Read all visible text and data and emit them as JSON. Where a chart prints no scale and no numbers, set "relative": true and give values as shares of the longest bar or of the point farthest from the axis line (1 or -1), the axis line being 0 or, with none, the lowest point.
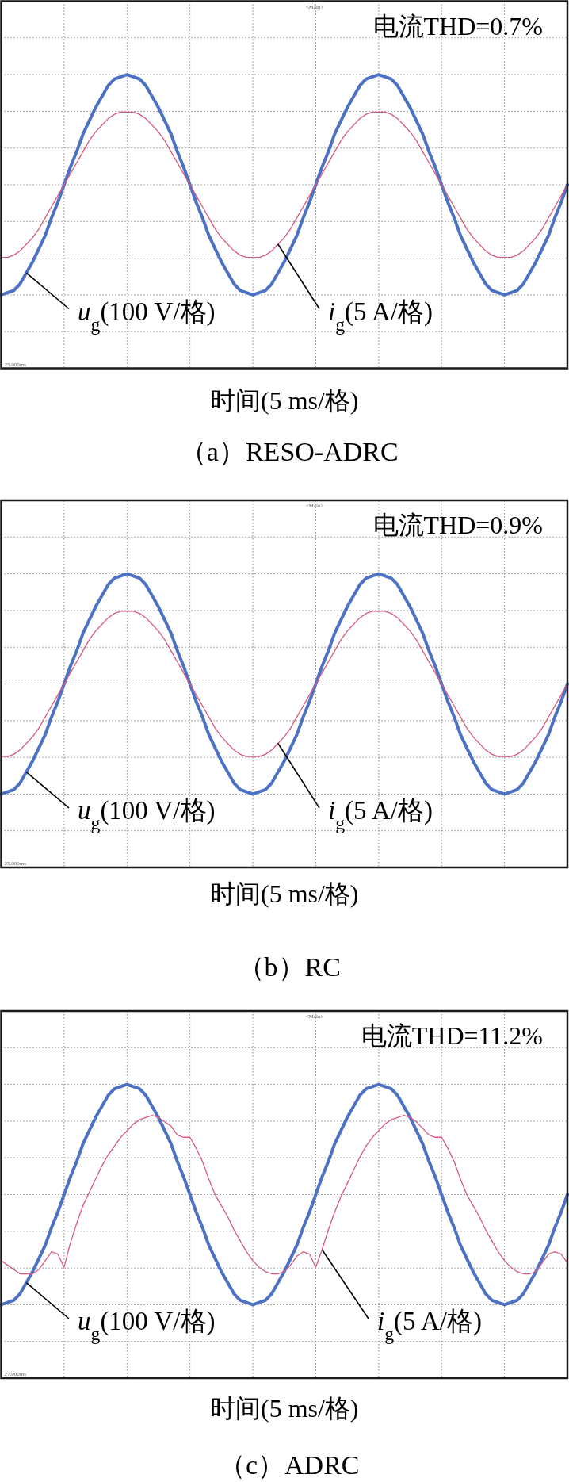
{
  "chart_data": [
    {
      "type": "line",
      "relative": true,
      "grid": true,
      "title": "（a）RESO-ADRC",
      "xlabel": "时间(5 ms/格)",
      "annotations": [
        "电流THD=0.7%",
        "<Main>",
        "25.000ms"
      ],
      "categories": [
        null,
        null,
        null,
        null,
        null,
        null,
        null,
        null,
        null,
        null,
        null,
        null,
        null,
        null,
        null,
        null,
        null,
        null,
        null,
        null,
        null,
        null,
        null,
        null,
        null,
        null,
        null,
        null,
        null,
        null,
        null,
        null,
        null,
        null,
        null,
        null,
        null,
        null,
        null,
        null,
        null,
        null,
        null,
        null,
        null,
        null,
        null,
        null,
        null,
        null,
        null,
        null,
        null,
        null,
        null,
        null,
        null,
        null,
        null,
        null,
        null,
        null,
        null,
        null,
        null,
        null,
        null,
        null,
        null,
        null,
        null,
        null,
        null,
        null,
        null,
        null,
        null,
        null,
        null,
        null,
        null,
        null,
        null,
        null,
        null,
        null,
        null,
        null,
        null,
        null,
        null
      ],
      "series": [
        {
          "name": "u$_{g}$(100 V/格)",
          "color": "#4d72c4",
          "values": [
            0,
            0.01,
            0.02,
            0.05,
            0.1,
            0.15,
            0.21,
            0.27,
            0.35,
            0.42,
            0.5,
            0.58,
            0.65,
            0.73,
            0.79,
            0.85,
            0.9,
            0.95,
            0.98,
            0.99,
            1,
            0.99,
            0.98,
            0.95,
            0.9,
            0.85,
            0.79,
            0.73,
            0.65,
            0.58,
            0.5,
            0.42,
            0.35,
            0.27,
            0.21,
            0.15,
            0.1,
            0.05,
            0.02,
            0.01,
            0,
            0.01,
            0.02,
            0.05,
            0.1,
            0.15,
            0.21,
            0.27,
            0.35,
            0.42,
            0.5,
            0.58,
            0.65,
            0.73,
            0.79,
            0.85,
            0.9,
            0.95,
            0.98,
            0.99,
            1,
            0.99,
            0.98,
            0.95,
            0.9,
            0.85,
            0.79,
            0.73,
            0.65,
            0.58,
            0.5,
            0.42,
            0.35,
            0.27,
            0.21,
            0.15,
            0.1,
            0.05,
            0.02,
            0.01,
            0,
            0.01,
            0.02,
            0.05,
            0.1,
            0.15,
            0.21,
            0.27,
            0.35,
            0.42,
            0.5
          ]
        },
        {
          "name": "i$_{g}$(5 A/格)",
          "color": "#d65a7c",
          "values": [
            0.17,
            0.17,
            0.18,
            0.2,
            0.23,
            0.26,
            0.3,
            0.35,
            0.4,
            0.45,
            0.5,
            0.55,
            0.6,
            0.65,
            0.7,
            0.74,
            0.77,
            0.8,
            0.82,
            0.83,
            0.83,
            0.83,
            0.82,
            0.8,
            0.77,
            0.74,
            0.7,
            0.65,
            0.6,
            0.55,
            0.5,
            0.45,
            0.4,
            0.35,
            0.3,
            0.26,
            0.23,
            0.2,
            0.18,
            0.17,
            0.17,
            0.17,
            0.18,
            0.2,
            0.23,
            0.26,
            0.3,
            0.35,
            0.4,
            0.45,
            0.5,
            0.55,
            0.6,
            0.65,
            0.7,
            0.74,
            0.77,
            0.8,
            0.82,
            0.83,
            0.83,
            0.83,
            0.82,
            0.8,
            0.77,
            0.74,
            0.7,
            0.65,
            0.6,
            0.55,
            0.5,
            0.45,
            0.4,
            0.35,
            0.3,
            0.26,
            0.23,
            0.2,
            0.18,
            0.17,
            0.17,
            0.17,
            0.18,
            0.2,
            0.23,
            0.26,
            0.3,
            0.35,
            0.4,
            0.45,
            0.5
          ]
        }
      ]
    },
    {
      "type": "line",
      "relative": true,
      "grid": true,
      "title": "（b）RC",
      "xlabel": "时间(5 ms/格)",
      "annotations": [
        "电流THD=0.9%",
        "<Main>",
        "25.000ms"
      ],
      "categories": [
        null,
        null,
        null,
        null,
        null,
        null,
        null,
        null,
        null,
        null,
        null,
        null,
        null,
        null,
        null,
        null,
        null,
        null,
        null,
        null,
        null,
        null,
        null,
        null,
        null,
        null,
        null,
        null,
        null,
        null,
        null,
        null,
        null,
        null,
        null,
        null,
        null,
        null,
        null,
        null,
        null,
        null,
        null,
        null,
        null,
        null,
        null,
        null,
        null,
        null,
        null,
        null,
        null,
        null,
        null,
        null,
        null,
        null,
        null,
        null,
        null,
        null,
        null,
        null,
        null,
        null,
        null,
        null,
        null,
        null,
        null,
        null,
        null,
        null,
        null,
        null,
        null,
        null,
        null,
        null,
        null,
        null,
        null,
        null,
        null,
        null,
        null,
        null,
        null,
        null,
        null
      ],
      "series": [
        {
          "name": "u$_{g}$(100 V/格)",
          "color": "#4d72c4",
          "values": [
            0,
            0.01,
            0.02,
            0.05,
            0.1,
            0.15,
            0.21,
            0.27,
            0.35,
            0.42,
            0.5,
            0.58,
            0.65,
            0.73,
            0.79,
            0.85,
            0.9,
            0.95,
            0.98,
            0.99,
            1,
            0.99,
            0.98,
            0.95,
            0.9,
            0.85,
            0.79,
            0.73,
            0.65,
            0.58,
            0.5,
            0.42,
            0.35,
            0.27,
            0.21,
            0.15,
            0.1,
            0.05,
            0.02,
            0.01,
            0,
            0.01,
            0.02,
            0.05,
            0.1,
            0.15,
            0.21,
            0.27,
            0.35,
            0.42,
            0.5,
            0.58,
            0.65,
            0.73,
            0.79,
            0.85,
            0.9,
            0.95,
            0.98,
            0.99,
            1,
            0.99,
            0.98,
            0.95,
            0.9,
            0.85,
            0.79,
            0.73,
            0.65,
            0.58,
            0.5,
            0.42,
            0.35,
            0.27,
            0.21,
            0.15,
            0.1,
            0.05,
            0.02,
            0.01,
            0,
            0.01,
            0.02,
            0.05,
            0.1,
            0.15,
            0.21,
            0.27,
            0.35,
            0.42,
            0.5
          ]
        },
        {
          "name": "i$_{g}$(5 A/格)",
          "color": "#d65a7c",
          "values": [
            0.17,
            0.17,
            0.18,
            0.2,
            0.23,
            0.26,
            0.3,
            0.35,
            0.4,
            0.45,
            0.5,
            0.55,
            0.6,
            0.65,
            0.7,
            0.74,
            0.77,
            0.8,
            0.82,
            0.83,
            0.83,
            0.83,
            0.82,
            0.8,
            0.77,
            0.74,
            0.7,
            0.65,
            0.6,
            0.55,
            0.5,
            0.45,
            0.4,
            0.35,
            0.3,
            0.26,
            0.23,
            0.2,
            0.18,
            0.17,
            0.17,
            0.17,
            0.18,
            0.2,
            0.23,
            0.26,
            0.3,
            0.35,
            0.4,
            0.45,
            0.5,
            0.55,
            0.6,
            0.65,
            0.7,
            0.74,
            0.77,
            0.8,
            0.82,
            0.83,
            0.83,
            0.83,
            0.82,
            0.8,
            0.77,
            0.74,
            0.7,
            0.65,
            0.6,
            0.55,
            0.5,
            0.45,
            0.4,
            0.35,
            0.3,
            0.26,
            0.23,
            0.2,
            0.18,
            0.17,
            0.17,
            0.17,
            0.18,
            0.2,
            0.23,
            0.26,
            0.3,
            0.35,
            0.4,
            0.45,
            0.5
          ]
        }
      ]
    },
    {
      "type": "line",
      "relative": true,
      "grid": true,
      "title": "（c）ADRC",
      "xlabel": "时间(5 ms/格)",
      "annotations": [
        "电流THD=11.2%",
        "<Main>",
        "27.000ms"
      ],
      "categories": [
        null,
        null,
        null,
        null,
        null,
        null,
        null,
        null,
        null,
        null,
        null,
        null,
        null,
        null,
        null,
        null,
        null,
        null,
        null,
        null,
        null,
        null,
        null,
        null,
        null,
        null,
        null,
        null,
        null,
        null,
        null,
        null,
        null,
        null,
        null,
        null,
        null,
        null,
        null,
        null,
        null,
        null,
        null,
        null,
        null,
        null,
        null,
        null,
        null,
        null,
        null,
        null,
        null,
        null,
        null,
        null,
        null,
        null,
        null,
        null,
        null,
        null,
        null,
        null,
        null,
        null,
        null,
        null,
        null,
        null,
        null,
        null,
        null,
        null,
        null,
        null,
        null,
        null,
        null,
        null,
        null,
        null,
        null,
        null,
        null,
        null,
        null,
        null,
        null,
        null,
        null
      ],
      "series": [
        {
          "name": "u$_{g}$(100 V/格)",
          "color": "#4d72c4",
          "values": [
            0,
            0.01,
            0.02,
            0.05,
            0.1,
            0.15,
            0.21,
            0.27,
            0.35,
            0.42,
            0.5,
            0.58,
            0.65,
            0.73,
            0.79,
            0.85,
            0.9,
            0.95,
            0.98,
            0.99,
            1,
            0.99,
            0.98,
            0.95,
            0.9,
            0.85,
            0.79,
            0.73,
            0.65,
            0.58,
            0.5,
            0.42,
            0.35,
            0.27,
            0.21,
            0.15,
            0.1,
            0.05,
            0.02,
            0.01,
            0,
            0.01,
            0.02,
            0.05,
            0.1,
            0.15,
            0.21,
            0.27,
            0.35,
            0.42,
            0.5,
            0.58,
            0.65,
            0.73,
            0.79,
            0.85,
            0.9,
            0.95,
            0.98,
            0.99,
            1,
            0.99,
            0.98,
            0.95,
            0.9,
            0.85,
            0.79,
            0.73,
            0.65,
            0.58,
            0.5,
            0.42,
            0.35,
            0.27,
            0.21,
            0.15,
            0.1,
            0.05,
            0.02,
            0.01,
            0,
            0.01,
            0.02,
            0.05,
            0.1,
            0.15,
            0.21,
            0.27,
            0.35,
            0.42,
            0.5
          ]
        },
        {
          "name": "i$_{g}$(5 A/格)",
          "color": "#d65a7c",
          "values": [
            0.2,
            0.18,
            0.16,
            0.14,
            0.14,
            0.14,
            0.16,
            0.2,
            0.24,
            0.23,
            0.17,
            0.28,
            0.37,
            0.45,
            0.51,
            0.57,
            0.63,
            0.68,
            0.72,
            0.76,
            0.79,
            0.82,
            0.84,
            0.85,
            0.86,
            0.85,
            0.83,
            0.81,
            0.77,
            0.76,
            0.76,
            0.71,
            0.65,
            0.57,
            0.5,
            0.45,
            0.4,
            0.34,
            0.29,
            0.24,
            0.2,
            0.17,
            0.15,
            0.14,
            0.14,
            0.15,
            0.18,
            0.22,
            0.24,
            0.23,
            0.17,
            0.25,
            0.34,
            0.42,
            0.49,
            0.55,
            0.61,
            0.67,
            0.72,
            0.76,
            0.79,
            0.82,
            0.84,
            0.85,
            0.86,
            0.85,
            0.83,
            0.8,
            0.77,
            0.76,
            0.76,
            0.71,
            0.65,
            0.57,
            0.5,
            0.45,
            0.4,
            0.34,
            0.29,
            0.24,
            0.2,
            0.17,
            0.15,
            0.14,
            0.14,
            0.15,
            0.19,
            0.23,
            0.24,
            0.23,
            0.19
          ]
        }
      ]
    }
  ]
}
